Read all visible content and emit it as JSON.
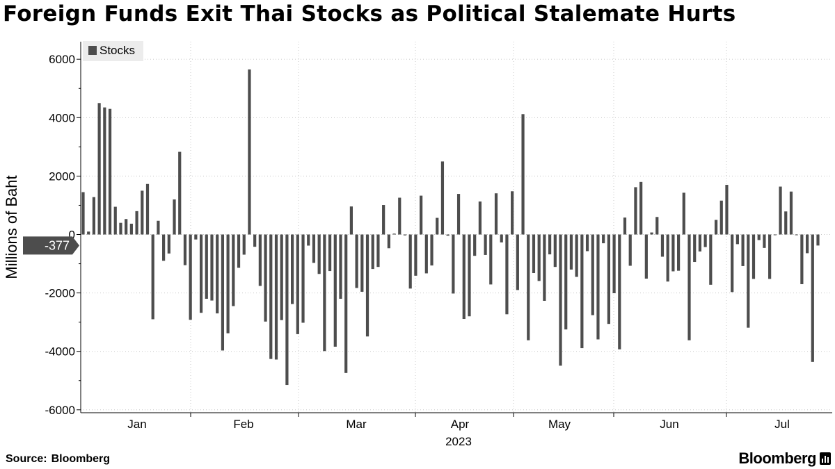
{
  "title": "Foreign Funds Exit Thai Stocks as Political Stalemate Hurts",
  "source": {
    "label": "Source:",
    "name": "Bloomberg"
  },
  "brand": "Bloomberg",
  "chart_data": {
    "type": "bar",
    "title": "Foreign Funds Exit Thai Stocks as Political Stalemate Hurts",
    "xlabel": "2023",
    "ylabel": "Millions of Baht",
    "ylim": [
      -6100,
      6600
    ],
    "yticks": [
      -6000,
      -4000,
      -2000,
      0,
      2000,
      4000,
      6000
    ],
    "grid": true,
    "legend": {
      "entries": [
        "Stocks"
      ],
      "position": "top-left"
    },
    "last_value_label": "-377",
    "month_labels": [
      "Jan",
      "Feb",
      "Mar",
      "Apr",
      "May",
      "Jun",
      "Jul"
    ],
    "year_label": "2023",
    "series": [
      {
        "name": "Stocks",
        "color": "#4d4d4d",
        "values": [
          1450,
          100,
          1280,
          4500,
          4350,
          4300,
          950,
          400,
          530,
          370,
          800,
          1500,
          1730,
          -2900,
          470,
          -900,
          -650,
          1200,
          2830,
          -1050,
          -2920,
          -170,
          -2680,
          -2200,
          -2260,
          -2700,
          -3970,
          -3380,
          -2450,
          -1140,
          -690,
          5650,
          -420,
          -1760,
          -2980,
          -4260,
          -4280,
          -2930,
          -5150,
          -2380,
          -3410,
          -3020,
          -380,
          -970,
          -1350,
          -3990,
          -1250,
          -3840,
          -2200,
          -4740,
          960,
          -1830,
          -1960,
          -3490,
          -1180,
          -1110,
          1010,
          -470,
          30,
          1260,
          -30,
          -1850,
          -1410,
          1330,
          -1330,
          -1060,
          570,
          2500,
          -40,
          -2020,
          1390,
          -2890,
          -2800,
          -730,
          1130,
          -700,
          -1710,
          1410,
          -270,
          -2730,
          1480,
          -1900,
          4120,
          -3620,
          -1320,
          -1590,
          -2270,
          -680,
          -1110,
          -4490,
          -3250,
          -1200,
          -1450,
          -3890,
          -570,
          -2760,
          -3590,
          -300,
          -3060,
          -2010,
          -3930,
          580,
          -1070,
          1620,
          1800,
          -1510,
          70,
          600,
          -760,
          -1610,
          -1260,
          -1240,
          1430,
          -3620,
          -940,
          -580,
          -430,
          -1720,
          500,
          1160,
          1700,
          -1970,
          -330,
          -1080,
          -3190,
          -1520,
          -190,
          -460,
          -1520,
          -10,
          1640,
          790,
          1470,
          -20,
          -1700,
          -640,
          -4360,
          -377
        ]
      }
    ]
  }
}
